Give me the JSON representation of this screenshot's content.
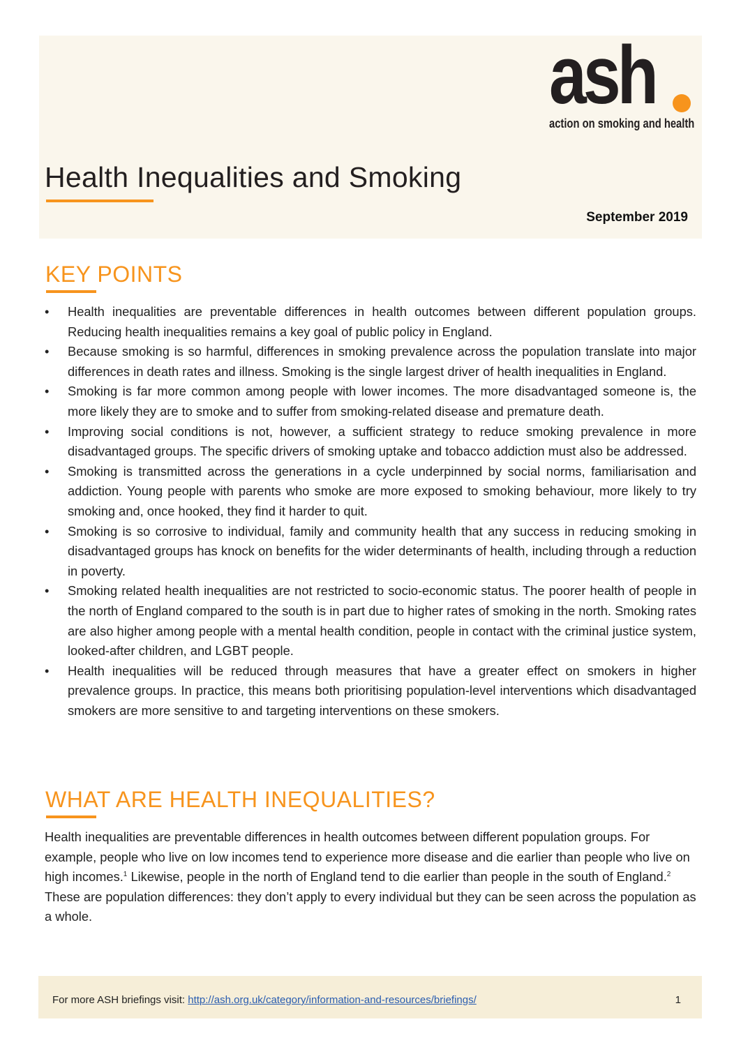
{
  "logo": {
    "word": "ash",
    "tagline": "action on smoking and health",
    "accent": "#f7941d"
  },
  "header": {
    "title": "Health Inequalities and Smoking",
    "date": "September 2019"
  },
  "key_points": {
    "heading": "KEY POINTS",
    "items": [
      "Health inequalities are preventable differences in health outcomes between different population groups. Reducing health inequalities remains a key goal of public policy in England.",
      "Because smoking is so harmful, differences in smoking prevalence across the population translate into major differences in death rates and illness. Smoking is the single largest driver of health inequalities in England.",
      "Smoking is far more common among people with lower incomes. The more disadvantaged someone is, the more likely they are to smoke and to suffer from smoking-related disease and premature death.",
      "Improving social conditions is not, however, a sufficient strategy to reduce smoking prevalence in more disadvantaged groups. The specific drivers of smoking uptake and tobacco addiction must also be addressed.",
      "Smoking is transmitted across the generations in a cycle underpinned by social norms, familiarisation and addiction. Young people with parents who smoke are more exposed to smoking behaviour, more likely to try smoking and, once hooked, they find it harder to quit.",
      "Smoking is so corrosive to individual, family and community health that any success in reducing smoking in disadvantaged groups has knock on benefits for the wider determinants of health, including through a reduction in poverty.",
      "Smoking related health inequalities are not restricted to socio-economic status. The poorer health of people in the north of England compared to the south is in part due to higher rates of smoking in the north. Smoking rates are also higher among people with a mental health condition, people in contact with the criminal justice system, looked-after children, and LGBT people.",
      "Health inequalities will be reduced through measures that have a greater effect on smokers in higher prevalence groups. In practice, this means both prioritising population-level interventions which disadvantaged smokers are more sensitive to and targeting interventions on these smokers."
    ]
  },
  "what_are": {
    "heading": "WHAT ARE HEALTH INEQUALITIES?",
    "p1": "Health inequalities are preventable differences in health outcomes between different population groups. For example, people who live on low incomes tend to experience more disease and die earlier than people who live on high incomes.",
    "ref1": "1",
    "p2": " Likewise, people in the north of England tend to die earlier than people in the south of England.",
    "ref2": "2",
    "p3": " These are population differences: they don’t apply to every individual but they can be seen across the population as a whole."
  },
  "footer": {
    "text": "For more ASH briefings visit: ",
    "link": "http://ash.org.uk/category/information-and-resources/briefings/",
    "page": "1"
  }
}
